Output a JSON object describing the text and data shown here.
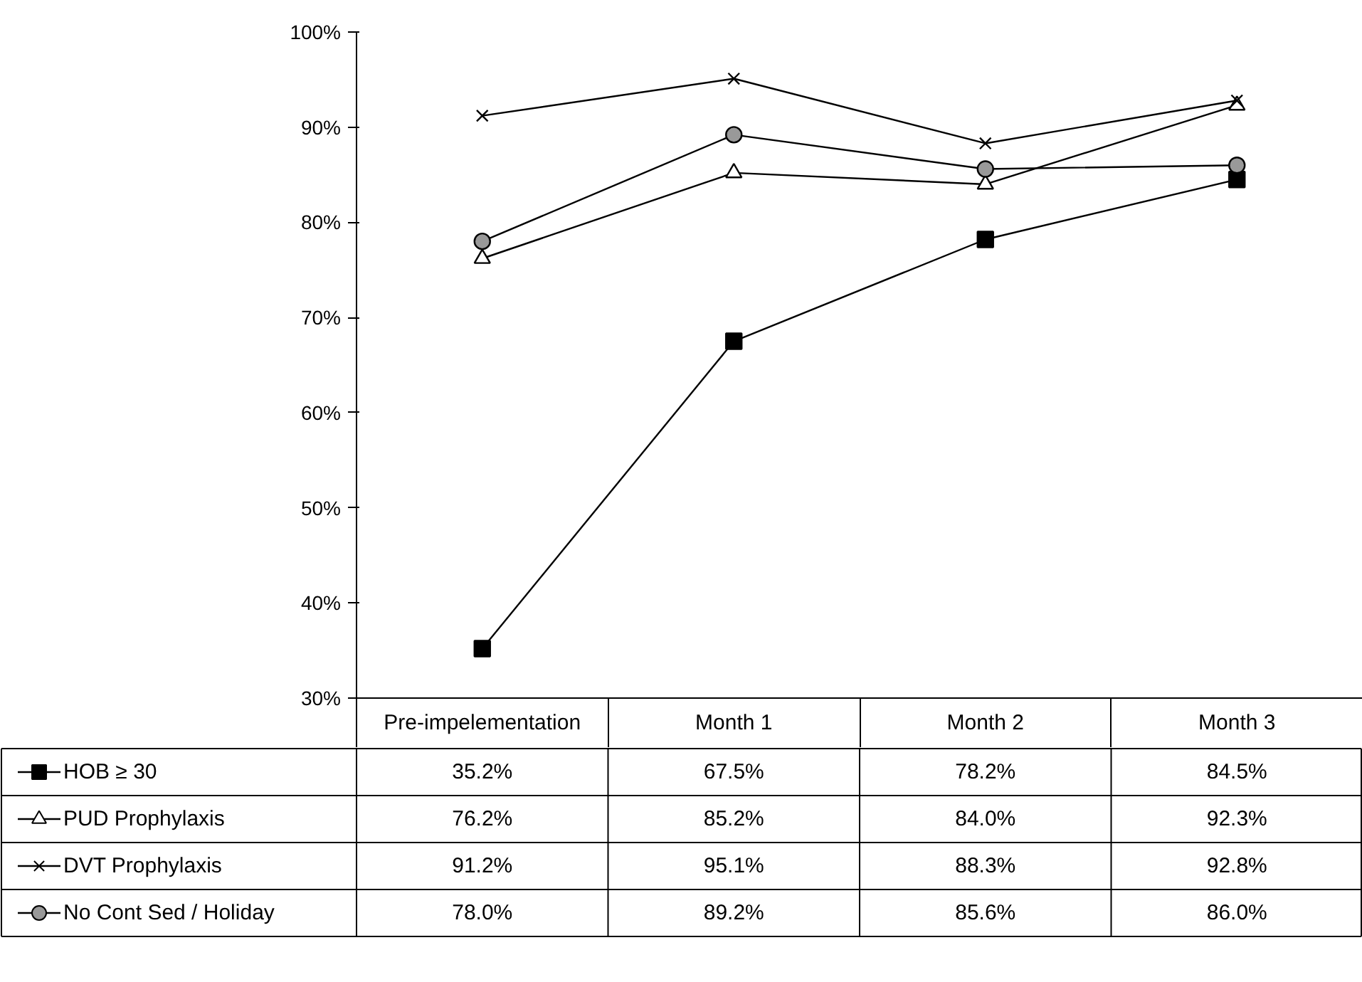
{
  "chart_data": {
    "type": "line",
    "categories": [
      "Pre-impelementation",
      "Month 1",
      "Month 2",
      "Month 3"
    ],
    "series": [
      {
        "name": "HOB ≥ 30",
        "color": "#000000",
        "marker": "square",
        "values": [
          35.2,
          67.5,
          78.2,
          84.5
        ],
        "value_labels": [
          "35.2%",
          "67.5%",
          "78.2%",
          "84.5%"
        ]
      },
      {
        "name": "PUD Prophylaxis",
        "color": "#000000",
        "marker": "triangle",
        "values": [
          76.2,
          85.2,
          84.0,
          92.3
        ],
        "value_labels": [
          "76.2%",
          "85.2%",
          "84.0%",
          "92.3%"
        ]
      },
      {
        "name": "DVT Prophylaxis",
        "color": "#000000",
        "marker": "cross",
        "values": [
          91.2,
          95.1,
          88.3,
          92.8
        ],
        "value_labels": [
          "91.2%",
          "95.1%",
          "88.3%",
          "92.8%"
        ]
      },
      {
        "name": "No Cont Sed / Holiday",
        "color": "#000000",
        "marker": "circle",
        "values": [
          78.0,
          89.2,
          85.6,
          86.0
        ],
        "value_labels": [
          "78.0%",
          "89.2%",
          "85.6%",
          "86.0%"
        ]
      }
    ],
    "ylim": [
      30,
      100
    ],
    "yticks": [
      {
        "value": 30,
        "label": "30%"
      },
      {
        "value": 40,
        "label": "40%"
      },
      {
        "value": 50,
        "label": "50%"
      },
      {
        "value": 60,
        "label": "60%"
      },
      {
        "value": 70,
        "label": "70%"
      },
      {
        "value": 80,
        "label": "80%"
      },
      {
        "value": 90,
        "label": "90%"
      },
      {
        "value": 100,
        "label": "100%"
      }
    ],
    "legend": "bottom",
    "line_style": "solid",
    "grid": false
  }
}
